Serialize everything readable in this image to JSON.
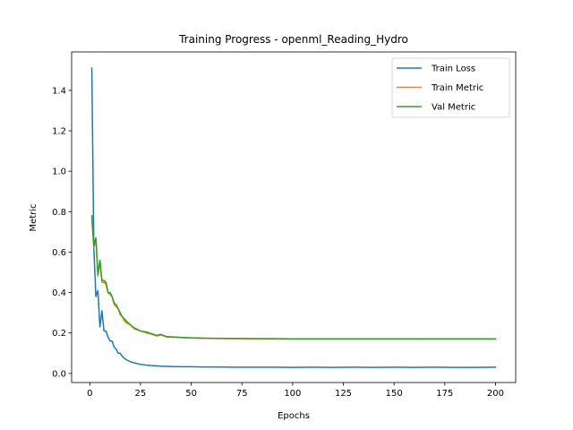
{
  "chart_data": {
    "type": "line",
    "title": "Training Progress - openml_Reading_Hydro",
    "xlabel": "Epochs",
    "ylabel": "Metric",
    "xlim": [
      -8.95,
      209.95
    ],
    "ylim": [
      -0.045,
      1.59
    ],
    "xticks": [
      0,
      25,
      50,
      75,
      100,
      125,
      150,
      175,
      200
    ],
    "yticks": [
      0.0,
      0.2,
      0.4,
      0.6,
      0.8,
      1.0,
      1.2,
      1.4
    ],
    "ytick_labels": [
      "0.0",
      "0.2",
      "0.4",
      "0.6",
      "0.8",
      "1.0",
      "1.2",
      "1.4"
    ],
    "grid": false,
    "legend_position": "top-right",
    "series": [
      {
        "name": "Train Loss",
        "color": "#1f77b4",
        "x": [
          1,
          2,
          3,
          4,
          5,
          6,
          7,
          8,
          9,
          10,
          11,
          12,
          13,
          14,
          15,
          16,
          17,
          18,
          20,
          22,
          25,
          28,
          30,
          35,
          40,
          45,
          50,
          55,
          60,
          70,
          80,
          90,
          100,
          110,
          120,
          130,
          140,
          150,
          160,
          170,
          180,
          190,
          200
        ],
        "y": [
          1.51,
          0.62,
          0.38,
          0.41,
          0.23,
          0.31,
          0.21,
          0.21,
          0.18,
          0.16,
          0.16,
          0.13,
          0.12,
          0.1,
          0.1,
          0.085,
          0.075,
          0.068,
          0.058,
          0.052,
          0.045,
          0.041,
          0.039,
          0.036,
          0.034,
          0.033,
          0.033,
          0.032,
          0.032,
          0.031,
          0.031,
          0.031,
          0.03,
          0.031,
          0.03,
          0.031,
          0.03,
          0.031,
          0.03,
          0.031,
          0.03,
          0.03,
          0.031
        ]
      },
      {
        "name": "Train Metric",
        "color": "#ff7f0e",
        "x": [
          1,
          2,
          3,
          4,
          5,
          6,
          7,
          8,
          9,
          10,
          11,
          12,
          13,
          14,
          15,
          16,
          17,
          18,
          20,
          22,
          25,
          28,
          30,
          33,
          35,
          38,
          40,
          45,
          50,
          55,
          60,
          70,
          80,
          90,
          100,
          110,
          120,
          130,
          140,
          150,
          160,
          170,
          180,
          190,
          200
        ],
        "y": [
          0.77,
          0.62,
          0.67,
          0.48,
          0.56,
          0.45,
          0.45,
          0.44,
          0.4,
          0.39,
          0.38,
          0.34,
          0.33,
          0.32,
          0.29,
          0.28,
          0.26,
          0.25,
          0.24,
          0.22,
          0.21,
          0.2,
          0.195,
          0.185,
          0.19,
          0.18,
          0.18,
          0.177,
          0.175,
          0.174,
          0.173,
          0.172,
          0.171,
          0.171,
          0.17,
          0.17,
          0.17,
          0.17,
          0.17,
          0.17,
          0.17,
          0.17,
          0.17,
          0.17,
          0.17
        ]
      },
      {
        "name": "Val Metric",
        "color": "#2ca02c",
        "x": [
          1,
          2,
          3,
          4,
          5,
          6,
          7,
          8,
          9,
          10,
          11,
          12,
          13,
          14,
          15,
          16,
          17,
          18,
          20,
          22,
          25,
          28,
          30,
          33,
          35,
          38,
          40,
          45,
          50,
          55,
          60,
          70,
          80,
          90,
          100,
          110,
          120,
          130,
          140,
          150,
          160,
          170,
          180,
          190,
          200
        ],
        "y": [
          0.78,
          0.63,
          0.67,
          0.49,
          0.56,
          0.46,
          0.46,
          0.45,
          0.4,
          0.4,
          0.38,
          0.35,
          0.34,
          0.32,
          0.3,
          0.28,
          0.27,
          0.26,
          0.24,
          0.225,
          0.21,
          0.205,
          0.198,
          0.188,
          0.193,
          0.182,
          0.181,
          0.178,
          0.176,
          0.175,
          0.174,
          0.173,
          0.172,
          0.172,
          0.171,
          0.171,
          0.171,
          0.171,
          0.171,
          0.171,
          0.171,
          0.171,
          0.171,
          0.171,
          0.171
        ]
      }
    ]
  }
}
